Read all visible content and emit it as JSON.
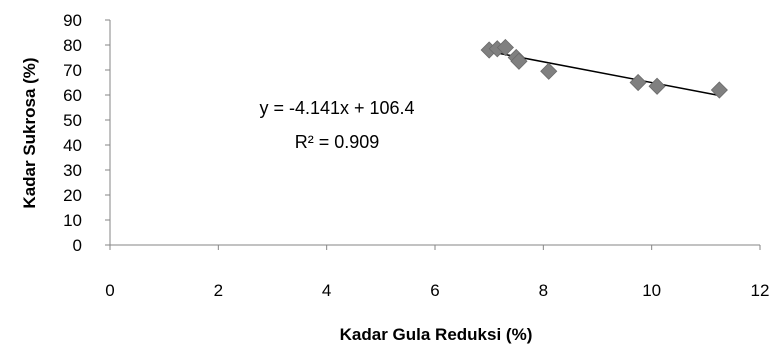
{
  "chart_data": {
    "type": "scatter",
    "xlabel": "Kadar Gula Reduksi (%)",
    "ylabel": "Kadar Sukrosa (%)",
    "xlim": [
      0,
      12
    ],
    "ylim": [
      0,
      90
    ],
    "x_ticks": [
      "0",
      "2",
      "4",
      "6",
      "8",
      "10",
      "12"
    ],
    "y_ticks": [
      "0",
      "10",
      "20",
      "30",
      "40",
      "50",
      "60",
      "70",
      "80",
      "90"
    ],
    "points": [
      {
        "x": 7.0,
        "y": 78
      },
      {
        "x": 7.15,
        "y": 78.5
      },
      {
        "x": 7.3,
        "y": 79
      },
      {
        "x": 7.5,
        "y": 75
      },
      {
        "x": 7.55,
        "y": 73.5
      },
      {
        "x": 8.1,
        "y": 69.5
      },
      {
        "x": 9.75,
        "y": 65
      },
      {
        "x": 10.1,
        "y": 63.5
      },
      {
        "x": 11.25,
        "y": 62
      }
    ],
    "trendline": {
      "slope": -4.141,
      "intercept": 106.4,
      "x_range": [
        7.0,
        11.25
      ]
    },
    "equation_text": "y = -4.141x + 106.4",
    "r2_text": "R² = 0.909",
    "marker_color": "#808080",
    "line_color": "#000000",
    "grid": false,
    "legend": "none"
  }
}
